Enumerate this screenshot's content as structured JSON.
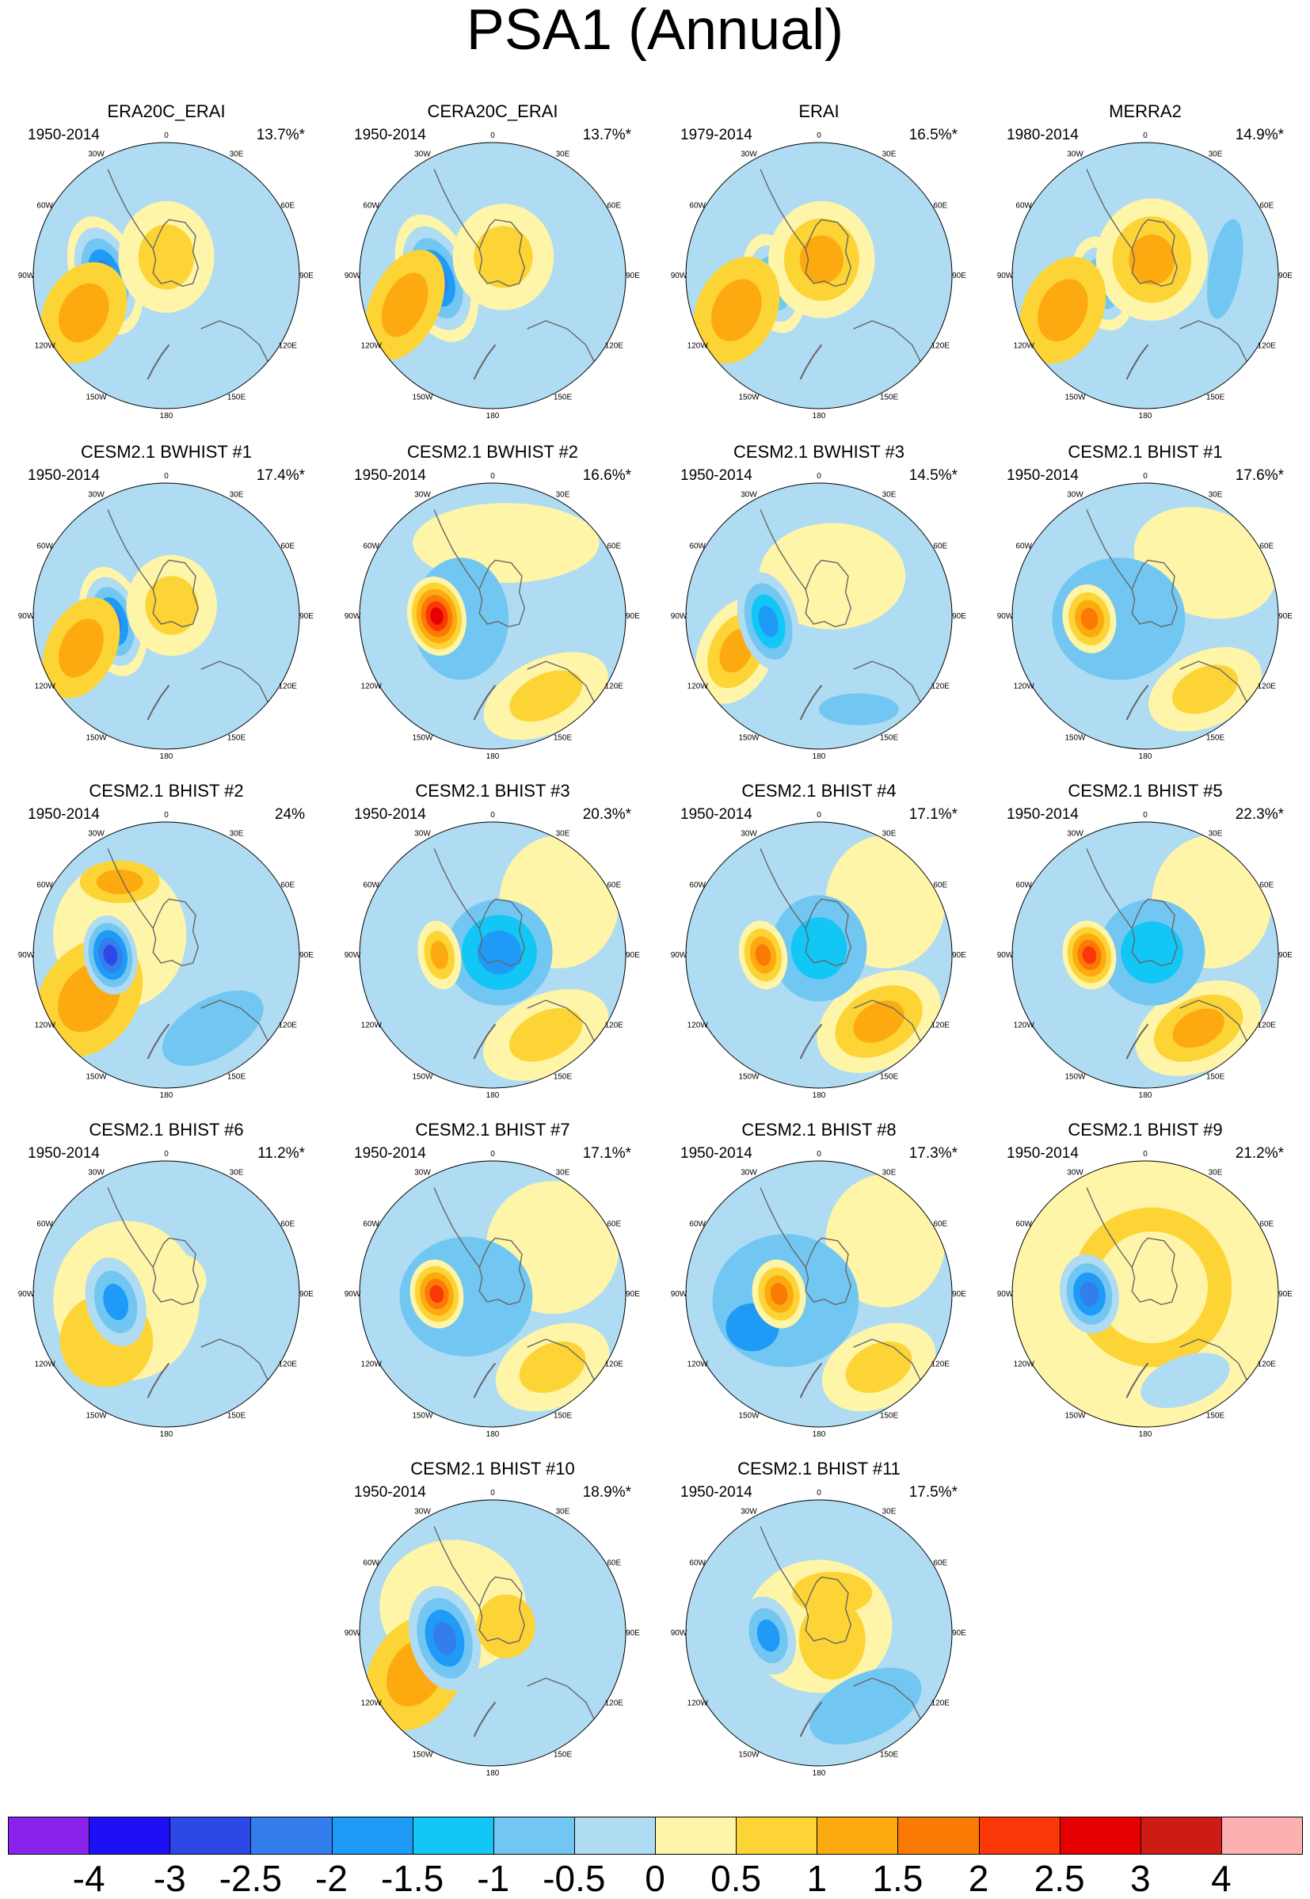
{
  "title": "PSA1 (Annual)",
  "lon_labels": [
    "0",
    "30E",
    "60E",
    "90E",
    "120E",
    "150E",
    "180",
    "150W",
    "120W",
    "90W",
    "60W",
    "30W"
  ],
  "colorbar": {
    "colors": [
      "#8a22ee",
      "#1d10f5",
      "#2d48e6",
      "#347ded",
      "#1f9bf7",
      "#12c6f5",
      "#72c7f2",
      "#afdcf3",
      "#fff5a8",
      "#fdd435",
      "#fdaa10",
      "#fb7a05",
      "#fb3708",
      "#e50002",
      "#cd1b16",
      "#fcb0b0"
    ],
    "ticks": [
      "-4",
      "-3",
      "-2.5",
      "-2",
      "-1.5",
      "-1",
      "-0.5",
      "0",
      "0.5",
      "1",
      "1.5",
      "2",
      "2.5",
      "3",
      "4"
    ]
  },
  "panels": [
    {
      "title": "ERA20C_ERAI",
      "period": "1950-2014",
      "pct": "13.7%*",
      "bg": "#afdcf3",
      "blobs": [
        {
          "ax": -0.46,
          "ay": 0.0,
          "rx": 0.26,
          "ry": 0.46,
          "rot": -18,
          "levels": [
            "#fff5a8",
            "#afdcf3",
            "#72c7f2",
            "#1f9bf7",
            "#347ded"
          ]
        },
        {
          "ax": 0.0,
          "ay": -0.14,
          "rx": 0.36,
          "ry": 0.42,
          "rot": 0,
          "levels": [
            "#fff5a8",
            "#fdd435"
          ]
        },
        {
          "ax": -0.62,
          "ay": 0.28,
          "rx": 0.3,
          "ry": 0.4,
          "rot": 28,
          "levels": [
            "#fdd435",
            "#fdaa10"
          ]
        }
      ]
    },
    {
      "title": "CERA20C_ERAI",
      "period": "1950-2014",
      "pct": "13.7%*",
      "bg": "#afdcf3",
      "blobs": [
        {
          "ax": -0.42,
          "ay": 0.02,
          "rx": 0.28,
          "ry": 0.5,
          "rot": -20,
          "levels": [
            "#fff5a8",
            "#afdcf3",
            "#72c7f2",
            "#1f9bf7",
            "#347ded"
          ]
        },
        {
          "ax": 0.08,
          "ay": -0.14,
          "rx": 0.38,
          "ry": 0.4,
          "rot": 0,
          "levels": [
            "#fff5a8",
            "#fdd435"
          ]
        },
        {
          "ax": -0.66,
          "ay": 0.22,
          "rx": 0.26,
          "ry": 0.44,
          "rot": 25,
          "levels": [
            "#fdd435",
            "#fdaa10"
          ]
        }
      ]
    },
    {
      "title": "ERAI",
      "period": "1979-2014",
      "pct": "16.5%*",
      "bg": "#afdcf3",
      "blobs": [
        {
          "ax": -0.34,
          "ay": 0.06,
          "rx": 0.22,
          "ry": 0.38,
          "rot": -15,
          "levels": [
            "#fff5a8",
            "#afdcf3",
            "#72c7f2",
            "#12c6f5"
          ]
        },
        {
          "ax": 0.02,
          "ay": -0.12,
          "rx": 0.4,
          "ry": 0.44,
          "rot": 0,
          "levels": [
            "#fff5a8",
            "#fdd435",
            "#fdaa10"
          ]
        },
        {
          "ax": -0.62,
          "ay": 0.26,
          "rx": 0.3,
          "ry": 0.42,
          "rot": 25,
          "levels": [
            "#fdd435",
            "#fdaa10"
          ]
        }
      ]
    },
    {
      "title": "MERRA2",
      "period": "1980-2014",
      "pct": "14.9%*",
      "bg": "#afdcf3",
      "blobs": [
        {
          "ax": -0.32,
          "ay": 0.06,
          "rx": 0.22,
          "ry": 0.36,
          "rot": -15,
          "levels": [
            "#fff5a8",
            "#afdcf3",
            "#72c7f2",
            "#12c6f5"
          ]
        },
        {
          "ax": 0.05,
          "ay": -0.12,
          "rx": 0.42,
          "ry": 0.46,
          "rot": 0,
          "levels": [
            "#fff5a8",
            "#fdd435",
            "#fdaa10"
          ]
        },
        {
          "ax": -0.62,
          "ay": 0.26,
          "rx": 0.3,
          "ry": 0.42,
          "rot": 25,
          "levels": [
            "#fdd435",
            "#fdaa10"
          ]
        },
        {
          "ax": 0.6,
          "ay": -0.05,
          "rx": 0.12,
          "ry": 0.38,
          "rot": 10,
          "levels": [
            "#72c7f2"
          ]
        }
      ]
    },
    {
      "title": "CESM2.1 BWHIST #1",
      "period": "1950-2014",
      "pct": "17.4%*",
      "bg": "#afdcf3",
      "blobs": [
        {
          "ax": -0.4,
          "ay": 0.04,
          "rx": 0.24,
          "ry": 0.42,
          "rot": -15,
          "levels": [
            "#fff5a8",
            "#afdcf3",
            "#72c7f2",
            "#1f9bf7",
            "#347ded"
          ]
        },
        {
          "ax": 0.04,
          "ay": -0.08,
          "rx": 0.34,
          "ry": 0.38,
          "rot": 0,
          "levels": [
            "#fff5a8",
            "#fdd435"
          ]
        },
        {
          "ax": -0.64,
          "ay": 0.24,
          "rx": 0.26,
          "ry": 0.4,
          "rot": 25,
          "levels": [
            "#fdd435",
            "#fdaa10"
          ]
        }
      ]
    },
    {
      "title": "CESM2.1 BWHIST #2",
      "period": "1950-2014",
      "pct": "16.6%*",
      "bg": "#afdcf3",
      "blobs": [
        {
          "ax": 0.1,
          "ay": -0.55,
          "rx": 0.7,
          "ry": 0.3,
          "rot": 0,
          "levels": [
            "#fff5a8"
          ]
        },
        {
          "ax": 0.4,
          "ay": 0.6,
          "rx": 0.5,
          "ry": 0.28,
          "rot": -25,
          "levels": [
            "#fff5a8",
            "#fdd435"
          ]
        },
        {
          "ax": -0.24,
          "ay": 0.02,
          "rx": 0.36,
          "ry": 0.46,
          "rot": 0,
          "levels": [
            "#72c7f2"
          ]
        },
        {
          "ax": -0.42,
          "ay": 0.0,
          "rx": 0.22,
          "ry": 0.3,
          "rot": -10,
          "levels": [
            "#fff5a8",
            "#fdd435",
            "#fdaa10",
            "#fb7a05",
            "#fb3708",
            "#e50002"
          ]
        }
      ]
    },
    {
      "title": "CESM2.1 BWHIST #3",
      "period": "1950-2014",
      "pct": "14.5%*",
      "bg": "#afdcf3",
      "blobs": [
        {
          "ax": 0.1,
          "ay": -0.3,
          "rx": 0.55,
          "ry": 0.4,
          "rot": 0,
          "levels": [
            "#fff5a8"
          ]
        },
        {
          "ax": -0.62,
          "ay": 0.26,
          "rx": 0.28,
          "ry": 0.42,
          "rot": 25,
          "levels": [
            "#fff5a8",
            "#fdd435",
            "#fdaa10"
          ]
        },
        {
          "ax": -0.38,
          "ay": 0.04,
          "rx": 0.22,
          "ry": 0.38,
          "rot": -15,
          "levels": [
            "#afdcf3",
            "#72c7f2",
            "#12c6f5",
            "#1f9bf7"
          ]
        },
        {
          "ax": 0.3,
          "ay": 0.7,
          "rx": 0.3,
          "ry": 0.12,
          "rot": 0,
          "levels": [
            "#72c7f2"
          ]
        }
      ]
    },
    {
      "title": "CESM2.1 BHIST #1",
      "period": "1950-2014",
      "pct": "17.6%*",
      "bg": "#afdcf3",
      "blobs": [
        {
          "ax": 0.45,
          "ay": -0.4,
          "rx": 0.55,
          "ry": 0.4,
          "rot": 20,
          "levels": [
            "#fff5a8"
          ]
        },
        {
          "ax": 0.45,
          "ay": 0.55,
          "rx": 0.45,
          "ry": 0.28,
          "rot": -25,
          "levels": [
            "#fff5a8",
            "#fdd435"
          ]
        },
        {
          "ax": -0.2,
          "ay": 0.02,
          "rx": 0.5,
          "ry": 0.46,
          "rot": 0,
          "levels": [
            "#72c7f2"
          ]
        },
        {
          "ax": -0.42,
          "ay": 0.02,
          "rx": 0.2,
          "ry": 0.26,
          "rot": -10,
          "levels": [
            "#fff5a8",
            "#fdd435",
            "#fdaa10",
            "#fb7a05"
          ]
        }
      ]
    },
    {
      "title": "CESM2.1 BHIST #2",
      "period": "1950-2014",
      "pct": "24%",
      "bg": "#afdcf3",
      "blobs": [
        {
          "ax": -0.35,
          "ay": -0.15,
          "rx": 0.5,
          "ry": 0.55,
          "rot": 0,
          "levels": [
            "#fff5a8"
          ]
        },
        {
          "ax": -0.35,
          "ay": -0.55,
          "rx": 0.3,
          "ry": 0.16,
          "rot": 0,
          "levels": [
            "#fdd435",
            "#fdaa10"
          ]
        },
        {
          "ax": -0.58,
          "ay": 0.32,
          "rx": 0.36,
          "ry": 0.48,
          "rot": 35,
          "levels": [
            "#fdd435",
            "#fdaa10"
          ]
        },
        {
          "ax": -0.42,
          "ay": 0.0,
          "rx": 0.2,
          "ry": 0.3,
          "rot": -10,
          "levels": [
            "#afdcf3",
            "#72c7f2",
            "#1f9bf7",
            "#347ded",
            "#2d48e6"
          ]
        },
        {
          "ax": 0.35,
          "ay": 0.55,
          "rx": 0.42,
          "ry": 0.22,
          "rot": -30,
          "levels": [
            "#72c7f2"
          ]
        }
      ]
    },
    {
      "title": "CESM2.1 BHIST #3",
      "period": "1950-2014",
      "pct": "20.3%*",
      "bg": "#afdcf3",
      "blobs": [
        {
          "ax": 0.5,
          "ay": -0.4,
          "rx": 0.45,
          "ry": 0.5,
          "rot": 0,
          "levels": [
            "#fff5a8"
          ]
        },
        {
          "ax": 0.4,
          "ay": 0.6,
          "rx": 0.5,
          "ry": 0.3,
          "rot": -25,
          "levels": [
            "#fff5a8",
            "#fdd435"
          ]
        },
        {
          "ax": 0.05,
          "ay": -0.02,
          "rx": 0.4,
          "ry": 0.4,
          "rot": 0,
          "levels": [
            "#72c7f2",
            "#12c6f5",
            "#1f9bf7"
          ]
        },
        {
          "ax": -0.4,
          "ay": 0.0,
          "rx": 0.16,
          "ry": 0.26,
          "rot": -10,
          "levels": [
            "#fff5a8",
            "#fdd435",
            "#fdaa10"
          ]
        }
      ]
    },
    {
      "title": "CESM2.1 BHIST #4",
      "period": "1950-2014",
      "pct": "17.1%*",
      "bg": "#afdcf3",
      "blobs": [
        {
          "ax": 0.5,
          "ay": -0.4,
          "rx": 0.45,
          "ry": 0.5,
          "rot": 0,
          "levels": [
            "#fff5a8"
          ]
        },
        {
          "ax": 0.45,
          "ay": 0.5,
          "rx": 0.5,
          "ry": 0.34,
          "rot": -30,
          "levels": [
            "#fff5a8",
            "#fdd435",
            "#fdaa10"
          ]
        },
        {
          "ax": 0.0,
          "ay": -0.05,
          "rx": 0.36,
          "ry": 0.4,
          "rot": 0,
          "levels": [
            "#72c7f2",
            "#12c6f5"
          ]
        },
        {
          "ax": -0.42,
          "ay": 0.0,
          "rx": 0.18,
          "ry": 0.26,
          "rot": -10,
          "levels": [
            "#fff5a8",
            "#fdd435",
            "#fdaa10",
            "#fb7a05"
          ]
        }
      ]
    },
    {
      "title": "CESM2.1 BHIST #5",
      "period": "1950-2014",
      "pct": "22.3%*",
      "bg": "#afdcf3",
      "blobs": [
        {
          "ax": 0.5,
          "ay": -0.4,
          "rx": 0.45,
          "ry": 0.5,
          "rot": 0,
          "levels": [
            "#fff5a8"
          ]
        },
        {
          "ax": 0.4,
          "ay": 0.55,
          "rx": 0.5,
          "ry": 0.32,
          "rot": -25,
          "levels": [
            "#fff5a8",
            "#fdd435",
            "#fdaa10"
          ]
        },
        {
          "ax": 0.05,
          "ay": -0.02,
          "rx": 0.4,
          "ry": 0.4,
          "rot": 0,
          "levels": [
            "#72c7f2",
            "#12c6f5"
          ]
        },
        {
          "ax": -0.42,
          "ay": 0.0,
          "rx": 0.2,
          "ry": 0.26,
          "rot": -10,
          "levels": [
            "#fff5a8",
            "#fdd435",
            "#fdaa10",
            "#fb7a05",
            "#fb3708"
          ]
        }
      ]
    },
    {
      "title": "CESM2.1 BHIST #6",
      "period": "1950-2014",
      "pct": "11.2%*",
      "bg": "#afdcf3",
      "blobs": [
        {
          "ax": -0.3,
          "ay": 0.05,
          "rx": 0.55,
          "ry": 0.6,
          "rot": 0,
          "levels": [
            "#fff5a8"
          ]
        },
        {
          "ax": -0.45,
          "ay": 0.35,
          "rx": 0.35,
          "ry": 0.35,
          "rot": 30,
          "levels": [
            "#fdd435"
          ]
        },
        {
          "ax": -0.38,
          "ay": 0.06,
          "rx": 0.22,
          "ry": 0.34,
          "rot": -15,
          "levels": [
            "#afdcf3",
            "#72c7f2",
            "#1f9bf7"
          ]
        },
        {
          "ax": 0.1,
          "ay": -0.1,
          "rx": 0.2,
          "ry": 0.2,
          "rot": 0,
          "levels": [
            "#fff5a8"
          ]
        }
      ]
    },
    {
      "title": "CESM2.1 BHIST #7",
      "period": "1950-2014",
      "pct": "17.1%*",
      "bg": "#afdcf3",
      "blobs": [
        {
          "ax": 0.45,
          "ay": -0.35,
          "rx": 0.5,
          "ry": 0.5,
          "rot": 0,
          "levels": [
            "#fff5a8"
          ]
        },
        {
          "ax": 0.45,
          "ay": 0.55,
          "rx": 0.45,
          "ry": 0.3,
          "rot": -25,
          "levels": [
            "#fff5a8",
            "#fdd435"
          ]
        },
        {
          "ax": -0.2,
          "ay": 0.02,
          "rx": 0.5,
          "ry": 0.45,
          "rot": 0,
          "levels": [
            "#72c7f2"
          ]
        },
        {
          "ax": -0.42,
          "ay": 0.0,
          "rx": 0.2,
          "ry": 0.26,
          "rot": -10,
          "levels": [
            "#fff5a8",
            "#fdd435",
            "#fdaa10",
            "#fb7a05",
            "#fb3708"
          ]
        }
      ]
    },
    {
      "title": "CESM2.1 BHIST #8",
      "period": "1950-2014",
      "pct": "17.3%*",
      "bg": "#afdcf3",
      "blobs": [
        {
          "ax": 0.5,
          "ay": -0.4,
          "rx": 0.45,
          "ry": 0.5,
          "rot": 0,
          "levels": [
            "#fff5a8"
          ]
        },
        {
          "ax": 0.45,
          "ay": 0.55,
          "rx": 0.45,
          "ry": 0.3,
          "rot": -25,
          "levels": [
            "#fff5a8",
            "#fdd435"
          ]
        },
        {
          "ax": -0.25,
          "ay": 0.05,
          "rx": 0.55,
          "ry": 0.5,
          "rot": 0,
          "levels": [
            "#72c7f2"
          ]
        },
        {
          "ax": -0.5,
          "ay": 0.25,
          "rx": 0.2,
          "ry": 0.18,
          "rot": 0,
          "levels": [
            "#1f9bf7"
          ]
        },
        {
          "ax": -0.3,
          "ay": 0.0,
          "rx": 0.2,
          "ry": 0.26,
          "rot": -10,
          "levels": [
            "#fff5a8",
            "#fdd435",
            "#fdaa10",
            "#fb7a05"
          ]
        }
      ]
    },
    {
      "title": "CESM2.1 BHIST #9",
      "period": "1950-2014",
      "pct": "21.2%*",
      "bg": "#fff5a8",
      "blobs": [
        {
          "ax": 0.05,
          "ay": -0.05,
          "rx": 0.6,
          "ry": 0.6,
          "rot": 0,
          "levels": [
            "#fdd435"
          ]
        },
        {
          "ax": 0.05,
          "ay": -0.05,
          "rx": 0.42,
          "ry": 0.42,
          "rot": 0,
          "levels": [
            "#fff5a8"
          ]
        },
        {
          "ax": -0.42,
          "ay": 0.0,
          "rx": 0.22,
          "ry": 0.3,
          "rot": -10,
          "levels": [
            "#afdcf3",
            "#72c7f2",
            "#1f9bf7",
            "#347ded"
          ]
        },
        {
          "ax": 0.3,
          "ay": 0.65,
          "rx": 0.35,
          "ry": 0.18,
          "rot": -20,
          "levels": [
            "#afdcf3"
          ]
        }
      ]
    },
    {
      "title": "CESM2.1 BHIST #10",
      "period": "1950-2014",
      "pct": "18.9%*",
      "bg": "#afdcf3",
      "blobs": [
        {
          "ax": -0.3,
          "ay": -0.2,
          "rx": 0.55,
          "ry": 0.5,
          "rot": 0,
          "levels": [
            "#fff5a8"
          ]
        },
        {
          "ax": -0.58,
          "ay": 0.3,
          "rx": 0.34,
          "ry": 0.46,
          "rot": 30,
          "levels": [
            "#fdd435",
            "#fdaa10"
          ]
        },
        {
          "ax": -0.36,
          "ay": 0.04,
          "rx": 0.26,
          "ry": 0.4,
          "rot": -15,
          "levels": [
            "#afdcf3",
            "#72c7f2",
            "#1f9bf7",
            "#347ded"
          ]
        },
        {
          "ax": 0.1,
          "ay": -0.05,
          "rx": 0.22,
          "ry": 0.24,
          "rot": 0,
          "levels": [
            "#fdd435"
          ]
        }
      ]
    },
    {
      "title": "CESM2.1 BHIST #11",
      "period": "1950-2014",
      "pct": "17.5%*",
      "bg": "#afdcf3",
      "blobs": [
        {
          "ax": 0.0,
          "ay": -0.05,
          "rx": 0.55,
          "ry": 0.5,
          "rot": 0,
          "levels": [
            "#fff5a8"
          ]
        },
        {
          "ax": 0.1,
          "ay": -0.3,
          "rx": 0.3,
          "ry": 0.16,
          "rot": 0,
          "levels": [
            "#fdd435"
          ]
        },
        {
          "ax": 0.1,
          "ay": 0.05,
          "rx": 0.25,
          "ry": 0.3,
          "rot": 0,
          "levels": [
            "#fdd435"
          ]
        },
        {
          "ax": -0.38,
          "ay": 0.02,
          "rx": 0.2,
          "ry": 0.3,
          "rot": -15,
          "levels": [
            "#afdcf3",
            "#72c7f2",
            "#1f9bf7"
          ]
        },
        {
          "ax": 0.35,
          "ay": 0.55,
          "rx": 0.45,
          "ry": 0.24,
          "rot": -25,
          "levels": [
            "#72c7f2"
          ]
        }
      ]
    }
  ]
}
